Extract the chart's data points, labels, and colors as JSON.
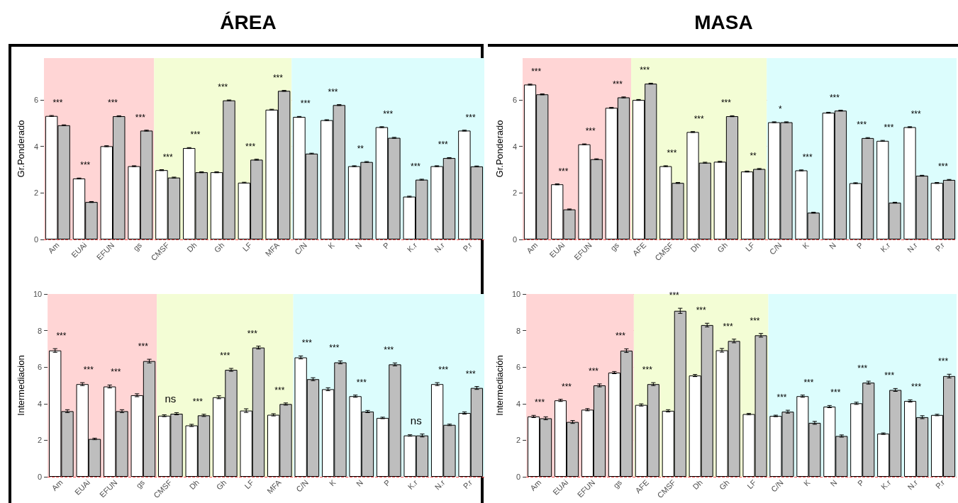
{
  "chart_data": [
    {
      "type": "bar",
      "title": "ÁREA",
      "ylabel": "Gr.Ponderado",
      "categories": [
        "Am",
        "EUAi",
        "EFUN",
        "gs",
        "CMSF",
        "Dh",
        "Gh",
        "LF",
        "MFA",
        "C/N",
        "K",
        "N",
        "P",
        "K.r",
        "N.r",
        "P.r"
      ],
      "series": [
        {
          "color": "#ffffff",
          "values": [
            5.31,
            2.62,
            4.01,
            3.15,
            2.98,
            3.93,
            2.89,
            2.44,
            5.58,
            5.27,
            5.13,
            3.15,
            4.83,
            1.84,
            3.15,
            4.68
          ],
          "errors": [
            0.02,
            0.02,
            0.02,
            0.02,
            0.02,
            0.02,
            0.02,
            0.02,
            0.02,
            0.02,
            0.02,
            0.02,
            0.02,
            0.02,
            0.02,
            0.02
          ]
        },
        {
          "color": "#bebebe",
          "values": [
            4.91,
            1.61,
            5.3,
            4.68,
            2.66,
            2.89,
            5.98,
            3.43,
            6.39,
            3.69,
            5.78,
            3.33,
            4.37,
            2.57,
            3.5,
            3.14
          ],
          "errors": [
            0.02,
            0.02,
            0.02,
            0.02,
            0.02,
            0.02,
            0.02,
            0.02,
            0.02,
            0.02,
            0.02,
            0.02,
            0.02,
            0.02,
            0.02,
            0.02
          ]
        }
      ],
      "ylim": [
        0,
        7.8
      ],
      "yticks": [
        0,
        2,
        4,
        6
      ],
      "grid": "y",
      "bands": [
        {
          "axis": "x",
          "from": "Am",
          "to": "gs",
          "color": "#ffd5d5"
        },
        {
          "axis": "x",
          "from": "CMSF",
          "to": "MFA",
          "color": "#f3fdd5"
        },
        {
          "axis": "x",
          "from": "C/N",
          "to": "P.r",
          "color": "#dcfdfd"
        }
      ],
      "annotations": [
        "***",
        "***",
        "***",
        "***",
        "***",
        "***",
        "***",
        "***",
        "***",
        "***",
        "***",
        "**",
        "***",
        "***",
        "***",
        "***"
      ]
    },
    {
      "type": "bar",
      "title": "MASA",
      "ylabel": "Gr.Ponderado",
      "categories": [
        "Am",
        "EUAi",
        "EFUN",
        "gs",
        "AFE",
        "CMSF",
        "Dh",
        "Gh",
        "LF",
        "C/N",
        "K",
        "N",
        "P",
        "K.r",
        "N.r",
        "P.r"
      ],
      "series": [
        {
          "color": "#ffffff",
          "values": [
            6.66,
            2.37,
            4.09,
            5.66,
            6.0,
            3.15,
            4.62,
            3.34,
            2.92,
            5.04,
            2.97,
            5.45,
            2.42,
            4.24,
            4.83,
            2.43
          ],
          "errors": [
            0.02,
            0.02,
            0.02,
            0.02,
            0.02,
            0.02,
            0.02,
            0.02,
            0.02,
            0.02,
            0.02,
            0.02,
            0.02,
            0.02,
            0.02,
            0.02
          ]
        },
        {
          "color": "#bebebe",
          "values": [
            6.24,
            1.29,
            3.45,
            6.11,
            6.7,
            2.43,
            3.3,
            5.3,
            3.03,
            5.04,
            1.15,
            5.54,
            4.36,
            1.58,
            2.74,
            2.56
          ],
          "errors": [
            0.02,
            0.02,
            0.02,
            0.02,
            0.02,
            0.02,
            0.02,
            0.02,
            0.02,
            0.02,
            0.02,
            0.02,
            0.02,
            0.02,
            0.02,
            0.02
          ]
        }
      ],
      "ylim": [
        0,
        7.8
      ],
      "yticks": [
        0,
        2,
        4,
        6
      ],
      "grid": "y",
      "bands": [
        {
          "axis": "x",
          "from": "Am",
          "to": "gs",
          "color": "#ffd5d5"
        },
        {
          "axis": "x",
          "from": "AFE",
          "to": "LF",
          "color": "#f3fdd5"
        },
        {
          "axis": "x",
          "from": "C/N",
          "to": "P.r",
          "color": "#dcfdfd"
        }
      ],
      "annotations": [
        "***",
        "***",
        "***",
        "***",
        "***",
        "***",
        "***",
        "***",
        "**",
        "*",
        "***",
        "***",
        "***",
        "***",
        "***",
        "***"
      ]
    },
    {
      "type": "bar",
      "ylabel": "Intermediacion",
      "categories": [
        "Am",
        "EUAi",
        "EFUN",
        "gs",
        "CMSF",
        "Dh",
        "Gh",
        "LF",
        "MFA",
        "C/N",
        "K",
        "N",
        "P",
        "K.r",
        "N.r",
        "P.r"
      ],
      "series": [
        {
          "color": "#ffffff",
          "values": [
            6.91,
            5.07,
            4.94,
            4.46,
            3.34,
            2.81,
            4.35,
            3.62,
            3.39,
            6.53,
            4.79,
            4.41,
            3.22,
            2.26,
            5.07,
            3.49
          ],
          "errors": [
            0.1,
            0.08,
            0.08,
            0.08,
            0.05,
            0.06,
            0.08,
            0.1,
            0.06,
            0.08,
            0.08,
            0.06,
            0.04,
            0.04,
            0.08,
            0.06
          ]
        },
        {
          "color": "#bebebe",
          "values": [
            3.59,
            2.07,
            3.59,
            6.33,
            3.45,
            3.36,
            5.85,
            7.07,
            3.98,
            5.34,
            6.26,
            3.57,
            6.15,
            2.26,
            2.84,
            4.86
          ],
          "errors": [
            0.08,
            0.04,
            0.08,
            0.1,
            0.06,
            0.06,
            0.08,
            0.08,
            0.06,
            0.08,
            0.08,
            0.06,
            0.08,
            0.08,
            0.04,
            0.08
          ]
        }
      ],
      "ylim": [
        0,
        10
      ],
      "yticks": [
        0,
        2,
        4,
        6,
        8,
        10
      ],
      "grid": "y",
      "bands": [
        {
          "axis": "x",
          "from": "Am",
          "to": "gs",
          "color": "#ffd5d5"
        },
        {
          "axis": "x",
          "from": "CMSF",
          "to": "MFA",
          "color": "#f3fdd5"
        },
        {
          "axis": "x",
          "from": "C/N",
          "to": "P.r",
          "color": "#dcfdfd"
        }
      ],
      "annotations": [
        "***",
        "***",
        "***",
        "***",
        "ns",
        "***",
        "***",
        "***",
        "***",
        "***",
        "***",
        "***",
        "***",
        "ns",
        "***",
        "***"
      ]
    },
    {
      "type": "bar",
      "ylabel": "Intermediación",
      "categories": [
        "Am",
        "EUAi",
        "EFUN",
        "gs",
        "AFE",
        "CMSF",
        "Dh",
        "Gh",
        "LF",
        "C/N",
        "K",
        "N",
        "P",
        "K.r",
        "N.r",
        "P.r"
      ],
      "series": [
        {
          "color": "#ffffff",
          "values": [
            3.3,
            4.18,
            3.67,
            5.7,
            3.93,
            3.61,
            5.54,
            6.92,
            3.43,
            3.33,
            4.41,
            3.84,
            4.02,
            2.36,
            4.15,
            3.38
          ],
          "errors": [
            0.06,
            0.06,
            0.06,
            0.06,
            0.06,
            0.06,
            0.06,
            0.1,
            0.04,
            0.04,
            0.06,
            0.06,
            0.06,
            0.04,
            0.06,
            0.04
          ]
        },
        {
          "color": "#bebebe",
          "values": [
            3.2,
            3.0,
            5.0,
            6.9,
            5.07,
            9.08,
            8.3,
            7.43,
            7.74,
            3.56,
            2.95,
            2.23,
            5.15,
            4.75,
            3.26,
            5.51
          ],
          "errors": [
            0.08,
            0.08,
            0.08,
            0.1,
            0.08,
            0.14,
            0.1,
            0.1,
            0.1,
            0.08,
            0.08,
            0.06,
            0.08,
            0.08,
            0.08,
            0.1
          ]
        }
      ],
      "ylim": [
        0,
        10
      ],
      "yticks": [
        0,
        2,
        4,
        6,
        8,
        10
      ],
      "grid": "y",
      "bands": [
        {
          "axis": "x",
          "from": "Am",
          "to": "gs",
          "color": "#ffd5d5"
        },
        {
          "axis": "x",
          "from": "AFE",
          "to": "LF",
          "color": "#f3fdd5"
        },
        {
          "axis": "x",
          "from": "C/N",
          "to": "P.r",
          "color": "#dcfdfd"
        }
      ],
      "annotations": [
        "***",
        "***",
        "***",
        "***",
        "***",
        "***",
        "***",
        "***",
        "***",
        "***",
        "***",
        "***",
        "***",
        "***",
        "***",
        "***"
      ]
    }
  ]
}
